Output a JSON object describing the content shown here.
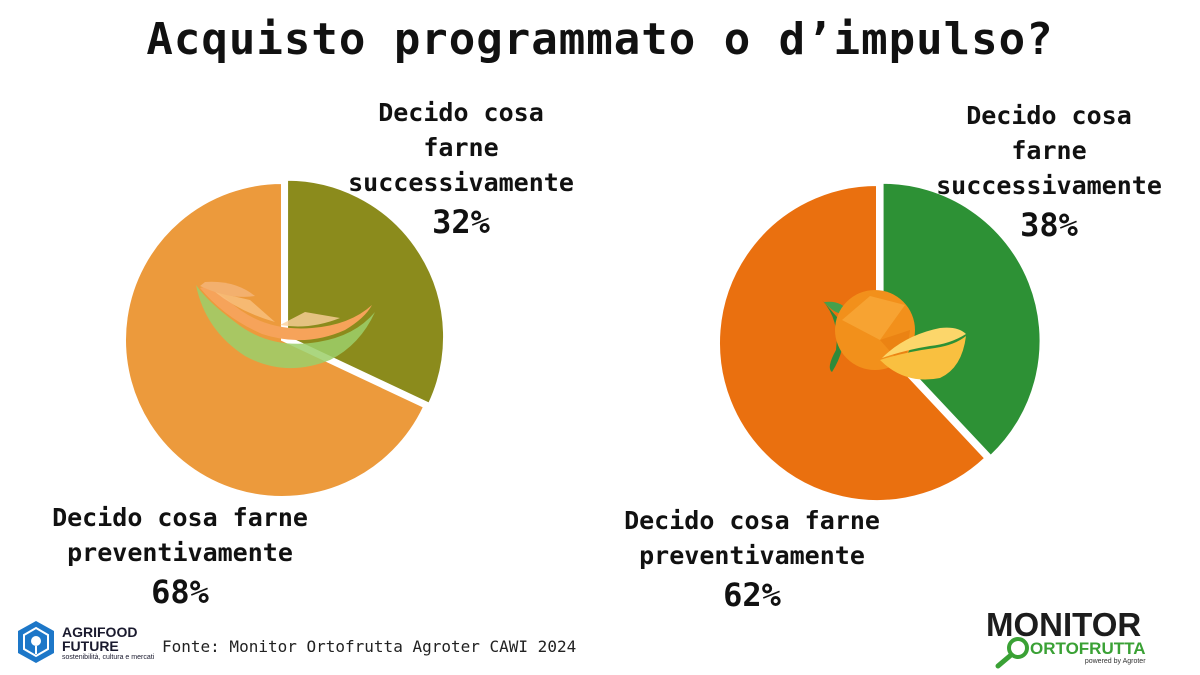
{
  "title": "Acquisto programmato o d’impulso?",
  "source": "Fonte: Monitor Ortofrutta Agroter CAWI 2024",
  "logos": {
    "agrifood_line1": "AGRIFOOD",
    "agrifood_line2": "FUTURE",
    "agrifood_tagline": "sostenibilità, cultura e mercati",
    "monitor_line1": "MONITOR",
    "monitor_line2": "ORTOFRUTTA",
    "monitor_powered": "powered by Agroter"
  },
  "chart_data": [
    {
      "type": "pie",
      "title": "",
      "slices": [
        {
          "label_lines": [
            "Decido cosa",
            "farne",
            "successivamente"
          ],
          "value": 32,
          "value_label": "32%",
          "color": "#8b8b1c"
        },
        {
          "label_lines": [
            "Decido cosa farne",
            "preventivamente"
          ],
          "value": 68,
          "value_label": "68%",
          "color": "#ec9a3c"
        }
      ]
    },
    {
      "type": "pie",
      "title": "",
      "slices": [
        {
          "label_lines": [
            "Decido cosa",
            "farne",
            "successivamente"
          ],
          "value": 38,
          "value_label": "38%",
          "color": "#2d9135"
        },
        {
          "label_lines": [
            "Decido cosa farne",
            "preventivamente"
          ],
          "value": 62,
          "value_label": "62%",
          "color": "#ea700f"
        }
      ]
    }
  ]
}
